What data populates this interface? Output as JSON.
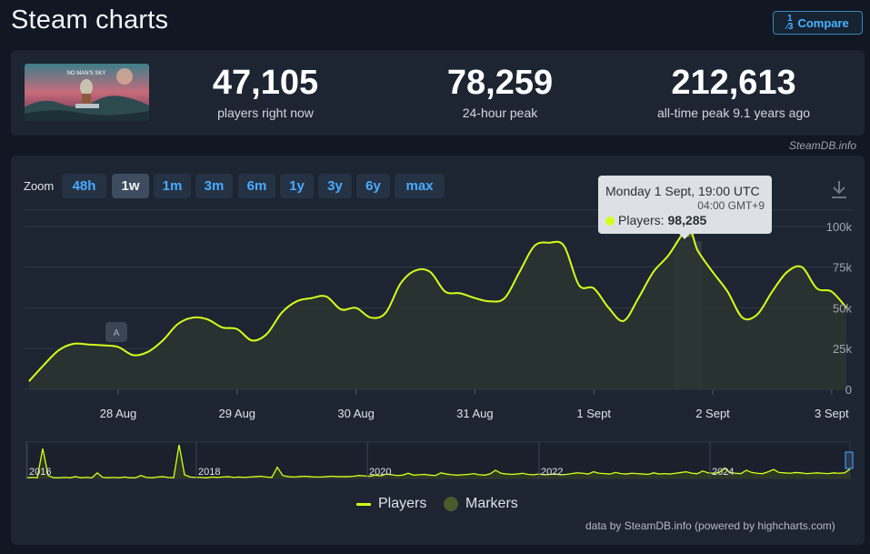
{
  "page": {
    "title": "Steam charts",
    "compare_label": "Compare",
    "compare_icon": "1⁄3 fraction-icon"
  },
  "stats": [
    {
      "value": "47,105",
      "label": "players right now"
    },
    {
      "value": "78,259",
      "label": "24-hour peak"
    },
    {
      "value": "212,613",
      "label": "all-time peak 9.1 years ago"
    }
  ],
  "game_art": {
    "logo_text": "NO MAN'S SKY"
  },
  "steamdb_credit": "SteamDB.info",
  "zoom": {
    "label": "Zoom",
    "buttons": [
      "48h",
      "1w",
      "1m",
      "3m",
      "6m",
      "1y",
      "3y",
      "6y",
      "max"
    ],
    "active": "1w"
  },
  "tooltip": {
    "date": "Monday 1 Sept, 19:00 UTC",
    "local_time": "04:00 GMT+9",
    "series": "Players:",
    "value": "98,285"
  },
  "legend": {
    "players": "Players",
    "markers": "Markers"
  },
  "credits": "data by SteamDB.info (powered by highcharts.com)",
  "colors": {
    "line": "#d4ff1c",
    "background": "#1d2532",
    "page": "#111823",
    "accent": "#49aaff"
  },
  "annotation_marker": "A",
  "chart_data": {
    "type": "line",
    "series": [
      {
        "name": "Players",
        "x": [
          "27 Aug 00:00",
          "27 Aug 03:00",
          "27 Aug 06:00",
          "27 Aug 09:00",
          "27 Aug 12:00",
          "27 Aug 15:00",
          "27 Aug 18:00",
          "27 Aug 21:00",
          "28 Aug 00:00",
          "28 Aug 03:00",
          "28 Aug 06:00",
          "28 Aug 09:00",
          "28 Aug 12:00",
          "28 Aug 15:00",
          "28 Aug 18:00",
          "28 Aug 21:00",
          "29 Aug 00:00",
          "29 Aug 03:00",
          "29 Aug 06:00",
          "29 Aug 09:00",
          "29 Aug 12:00",
          "29 Aug 15:00",
          "29 Aug 18:00",
          "29 Aug 21:00",
          "30 Aug 00:00",
          "30 Aug 03:00",
          "30 Aug 06:00",
          "30 Aug 09:00",
          "30 Aug 12:00",
          "30 Aug 15:00",
          "30 Aug 18:00",
          "30 Aug 21:00",
          "31 Aug 00:00",
          "31 Aug 03:00",
          "31 Aug 06:00",
          "31 Aug 09:00",
          "31 Aug 12:00",
          "31 Aug 15:00",
          "31 Aug 18:00",
          "31 Aug 21:00",
          "1 Sept 00:00",
          "1 Sept 03:00",
          "1 Sept 06:00",
          "1 Sept 09:00",
          "1 Sept 12:00",
          "1 Sept 15:00",
          "1 Sept 19:00",
          "1 Sept 21:00",
          "2 Sept 00:00",
          "2 Sept 03:00",
          "2 Sept 06:00",
          "2 Sept 09:00",
          "2 Sept 12:00",
          "2 Sept 15:00",
          "2 Sept 18:00",
          "2 Sept 21:00",
          "3 Sept 00:00",
          "3 Sept 03:00"
        ],
        "values": [
          3000,
          3500,
          5000,
          15000,
          24000,
          28000,
          27500,
          27000,
          26000,
          21000,
          23000,
          30000,
          40000,
          44000,
          43000,
          38000,
          37000,
          30000,
          34000,
          47000,
          54000,
          56000,
          57000,
          49000,
          50000,
          44000,
          47000,
          65000,
          73000,
          72000,
          60000,
          59000,
          56000,
          54000,
          56000,
          72000,
          88000,
          90000,
          88000,
          64000,
          62000,
          50000,
          42000,
          56000,
          72000,
          82000,
          98285,
          85000,
          72000,
          60000,
          44000,
          46000,
          60000,
          72000,
          75000,
          62000,
          60000,
          50000
        ]
      }
    ],
    "x_ticks": [
      "28 Aug",
      "29 Aug",
      "30 Aug",
      "31 Aug",
      "1 Sept",
      "2 Sept",
      "3 Sept"
    ],
    "y_ticks": [
      "0",
      "25k",
      "50k",
      "75k",
      "100k"
    ],
    "ylim": [
      0,
      110000
    ],
    "grid": true,
    "navigator": {
      "labels": [
        "2016",
        "2018",
        "2020",
        "2022",
        "2024"
      ],
      "values": [
        2,
        3,
        2,
        80,
        8,
        2,
        2,
        3,
        2,
        5,
        2,
        3,
        2,
        15,
        3,
        2,
        3,
        2,
        4,
        2,
        2,
        8,
        3,
        2,
        4,
        5,
        3,
        2,
        90,
        10,
        4,
        3,
        3,
        2,
        4,
        3,
        4,
        5,
        3,
        4,
        3,
        4,
        5,
        6,
        4,
        3,
        30,
        8,
        5,
        4,
        5,
        6,
        5,
        4,
        4,
        5,
        6,
        5,
        5,
        5,
        6,
        8,
        7,
        6,
        9,
        7,
        12,
        10,
        8,
        9,
        14,
        9,
        10,
        11,
        9,
        8,
        15,
        12,
        10,
        9,
        10,
        11,
        13,
        10,
        9,
        12,
        22,
        14,
        12,
        11,
        12,
        14,
        11,
        10,
        12,
        10,
        11,
        12,
        10,
        11,
        13,
        15,
        14,
        12,
        18,
        14,
        13,
        12,
        16,
        13,
        12,
        14,
        13,
        12,
        11,
        15,
        12,
        13,
        12,
        14,
        16,
        18,
        14,
        13,
        20,
        15,
        14,
        16,
        28,
        16,
        14,
        13,
        22,
        16,
        14,
        13,
        18,
        24,
        16,
        15,
        14,
        16,
        15,
        13,
        14,
        15,
        14,
        13,
        15,
        14,
        15,
        25
      ]
    }
  }
}
